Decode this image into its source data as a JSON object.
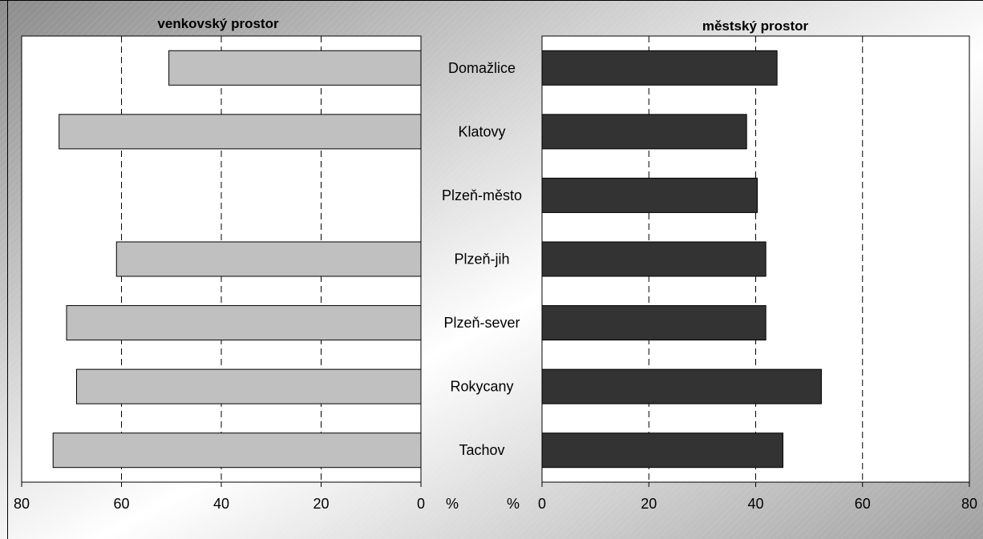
{
  "chart_data": [
    {
      "type": "bar",
      "orientation": "horizontal",
      "direction": "reversed",
      "title": "venkovský prostor",
      "unit_label": "%",
      "categories": [
        "Domažlice",
        "Klatovy",
        "Plzeň-město",
        "Plzeň-jih",
        "Plzeň-sever",
        "Rokycany",
        "Tachov"
      ],
      "values": [
        50.5,
        72.5,
        null,
        61,
        71,
        69,
        73.7
      ],
      "xlim": [
        0,
        80
      ],
      "xticks": [
        0,
        20,
        40,
        60,
        80
      ],
      "grid": "dashed vertical",
      "bar_color": "#c0c0c0"
    },
    {
      "type": "bar",
      "orientation": "horizontal",
      "direction": "normal",
      "title": "městský prostor",
      "unit_label": "%",
      "categories": [
        "Domažlice",
        "Klatovy",
        "Plzeň-město",
        "Plzeň-jih",
        "Plzeň-sever",
        "Rokycany",
        "Tachov"
      ],
      "values": [
        44,
        38.3,
        40.3,
        41.9,
        41.9,
        52.3,
        45.1
      ],
      "xlim": [
        0,
        80
      ],
      "xticks": [
        0,
        20,
        40,
        60,
        80
      ],
      "grid": "dashed vertical",
      "bar_color": "#333333"
    }
  ]
}
